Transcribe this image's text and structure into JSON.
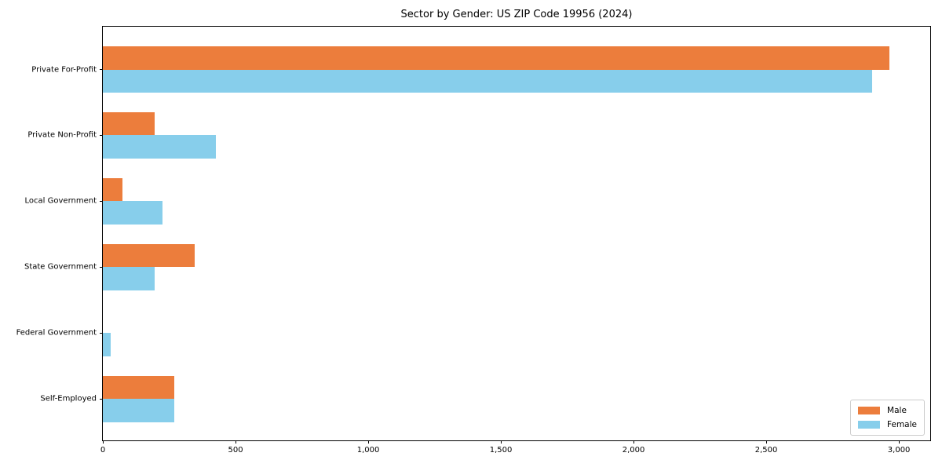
{
  "colors": {
    "male": "#ec7d3c",
    "female": "#87ceeb",
    "axis": "#000000",
    "legend_border": "#cccccc",
    "background": "#ffffff"
  },
  "chart_data": {
    "type": "bar",
    "orientation": "horizontal",
    "title": "Sector by Gender: US ZIP Code 19956 (2024)",
    "categories": [
      "Private For-Profit",
      "Private Non-Profit",
      "Local Government",
      "State Government",
      "Federal Government",
      "Self-Employed"
    ],
    "series": [
      {
        "name": "Male",
        "color": "#ec7d3c",
        "values": [
          2965,
          195,
          75,
          345,
          0,
          270
        ]
      },
      {
        "name": "Female",
        "color": "#87ceeb",
        "values": [
          2900,
          425,
          225,
          195,
          30,
          270
        ]
      }
    ],
    "xlabel": "",
    "ylabel": "",
    "xlim": [
      0,
      3118
    ],
    "xticks": [
      0,
      500,
      1000,
      1500,
      2000,
      2500,
      3000
    ],
    "xtick_labels": [
      "0",
      "500",
      "1,000",
      "1,500",
      "2,000",
      "2,500",
      "3,000"
    ],
    "grid": false,
    "legend_position": "lower right"
  }
}
